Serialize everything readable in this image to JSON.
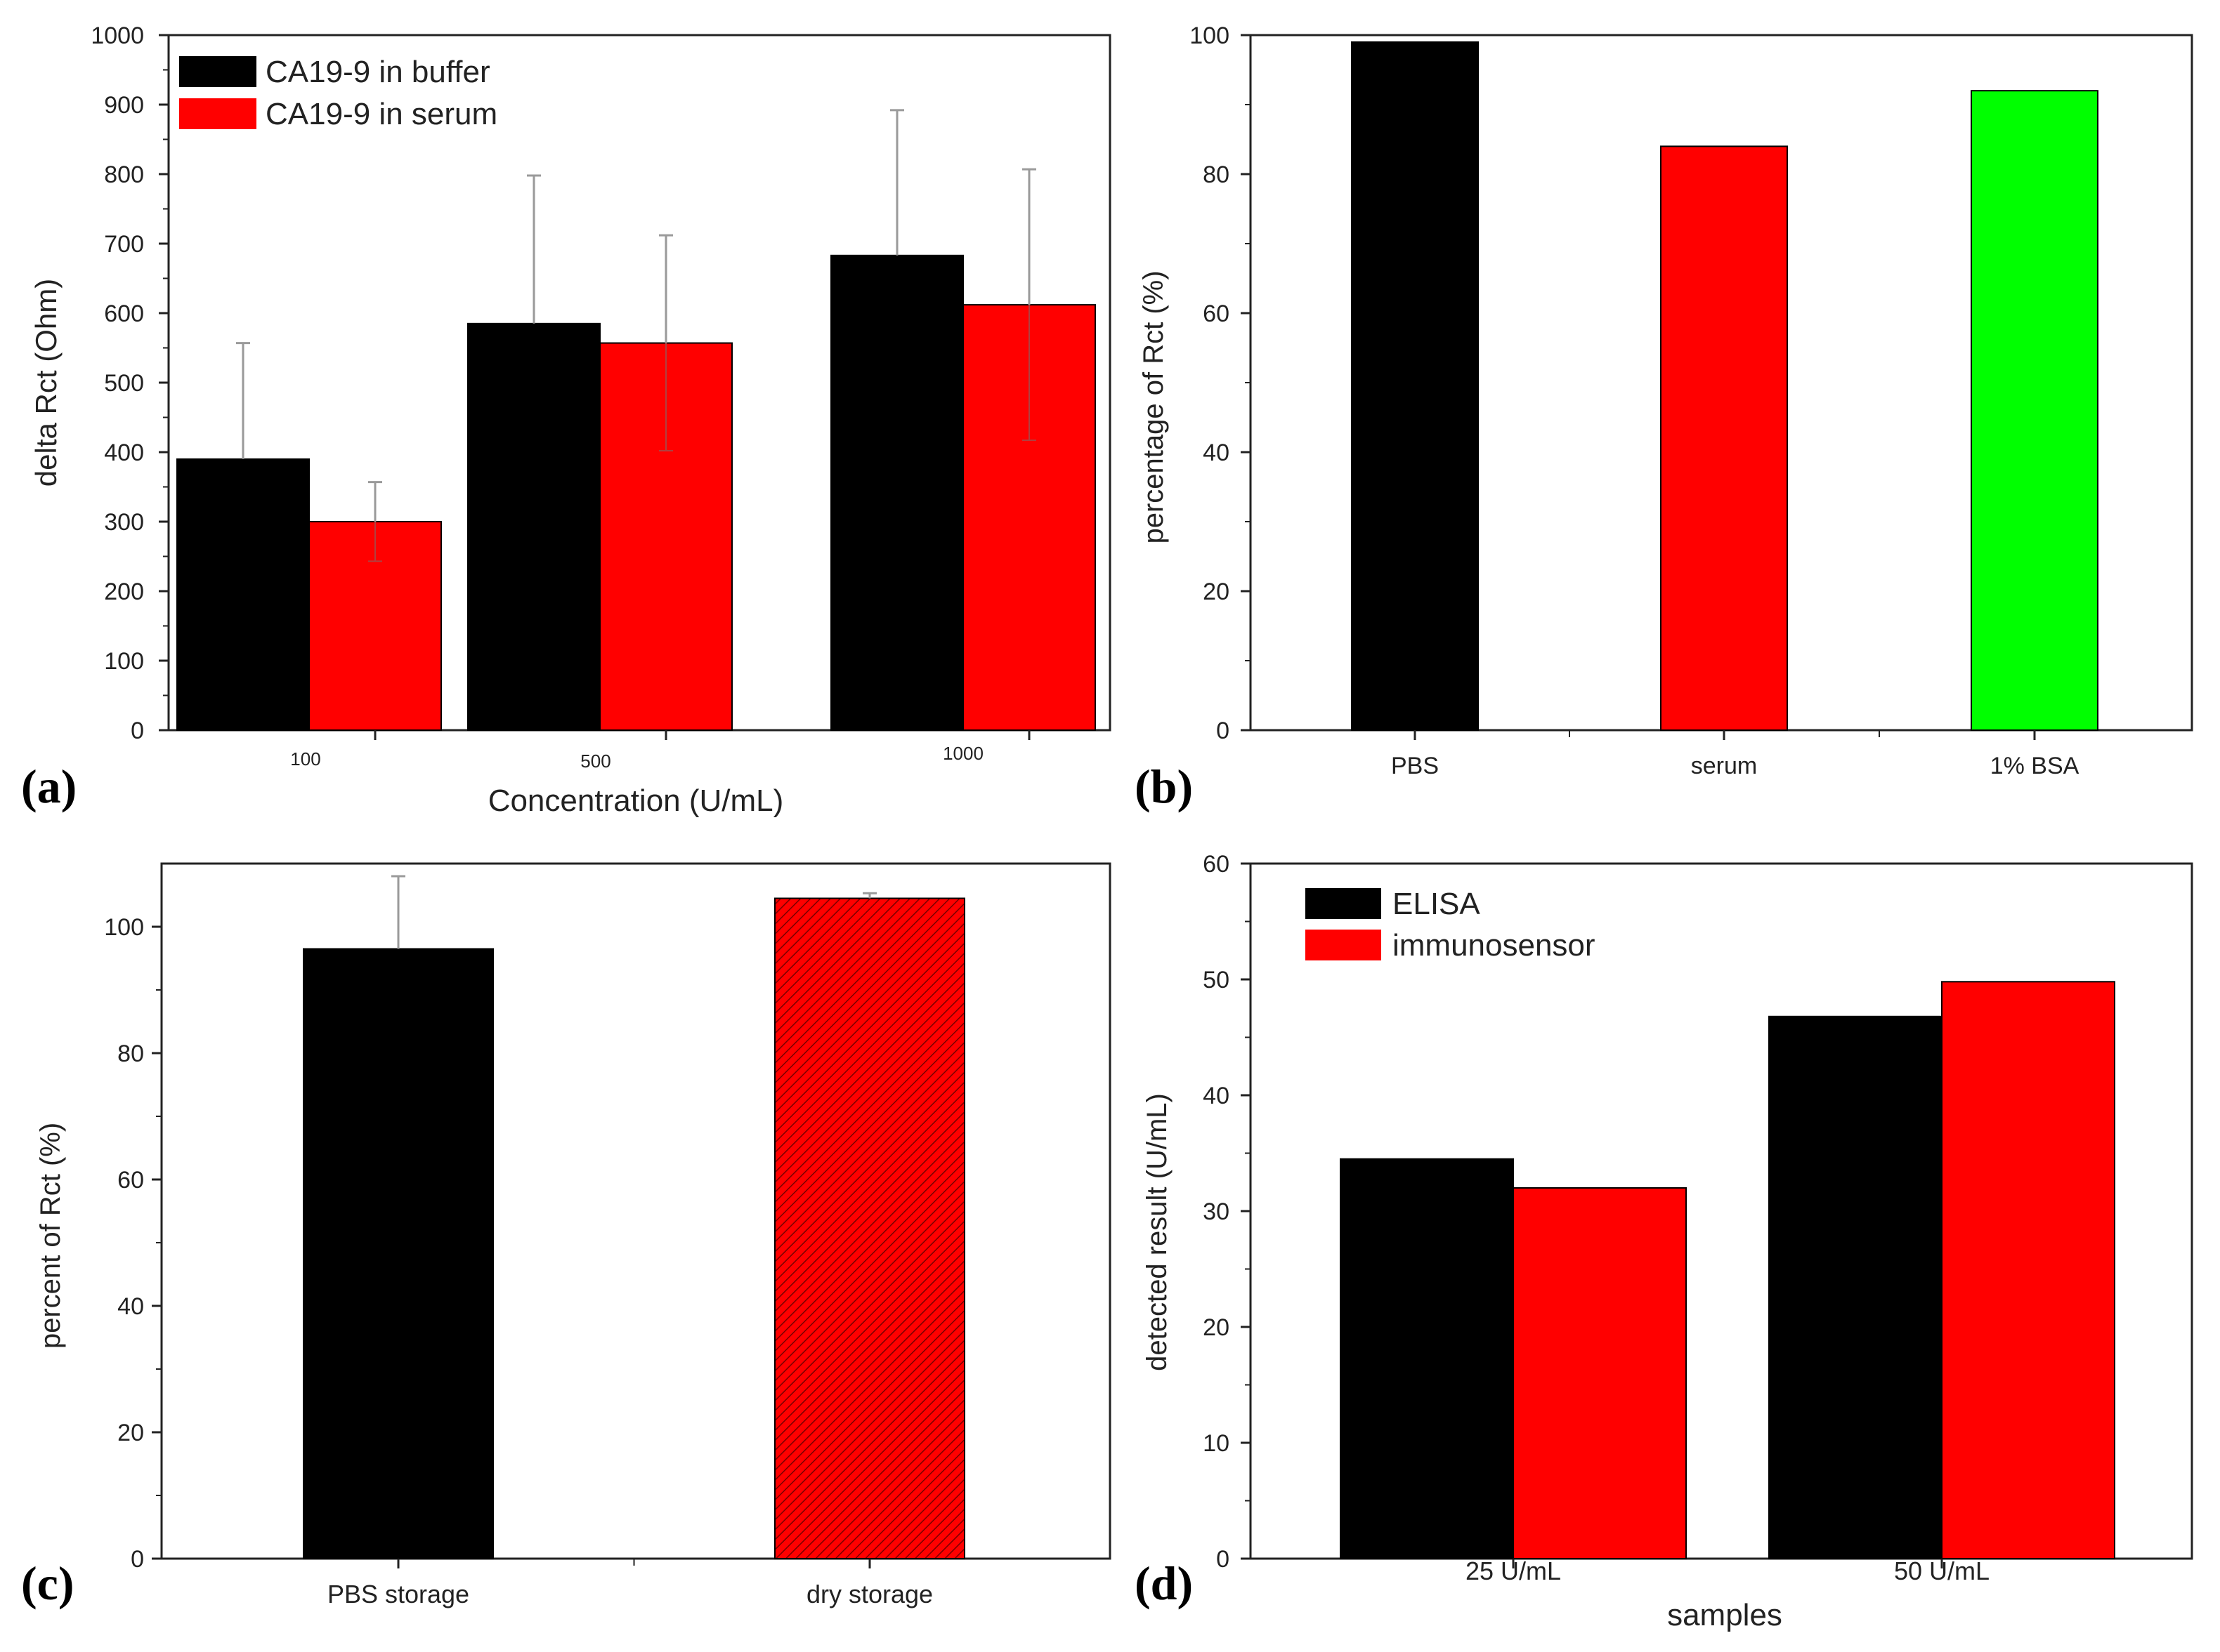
{
  "colors": {
    "black": "#000000",
    "red": "#ff0000",
    "green": "#00ff00",
    "errorbar": "#9a9a9a",
    "axis": "#222222"
  },
  "chart_data": [
    {
      "panel": "(a)",
      "type": "bar",
      "title": "",
      "xlabel": "Concentration (U/mL)",
      "ylabel": "delta Rct (Ohm)",
      "categories": [
        "100",
        "500",
        "1000"
      ],
      "ylim": [
        0,
        1000
      ],
      "yticks": [
        "0",
        "100",
        "200",
        "300",
        "400",
        "500",
        "600",
        "700",
        "800",
        "900",
        "1000"
      ],
      "legend_position": "top-left",
      "series": [
        {
          "name": "CA19-9 in buffer",
          "color": "#000000",
          "values": [
            390,
            585,
            683
          ],
          "errors": [
            167,
            213,
            209
          ]
        },
        {
          "name": "CA19-9 in serum",
          "color": "#ff0000",
          "values": [
            300,
            557,
            612
          ],
          "errors": [
            57,
            155,
            195
          ]
        }
      ]
    },
    {
      "panel": "(b)",
      "type": "bar",
      "title": "",
      "xlabel": "",
      "ylabel": "percentage of Rct (%)",
      "categories": [
        "PBS",
        "serum",
        "1% BSA"
      ],
      "ylim": [
        0,
        100
      ],
      "yticks": [
        "0",
        "20",
        "40",
        "60",
        "80",
        "100"
      ],
      "series": [
        {
          "name": "",
          "values": [
            99,
            84,
            92
          ],
          "colors": [
            "#000000",
            "#ff0000",
            "#00ff00"
          ]
        }
      ]
    },
    {
      "panel": "(c)",
      "type": "bar",
      "title": "",
      "xlabel": "",
      "ylabel": "percent of Rct (%)",
      "categories": [
        "PBS storage",
        "dry storage"
      ],
      "ylim": [
        0,
        110
      ],
      "yticks": [
        "0",
        "20",
        "40",
        "60",
        "80",
        "100"
      ],
      "series": [
        {
          "name": "",
          "values": [
            96.5,
            104.5
          ],
          "errors": [
            11.5,
            0.8
          ],
          "colors": [
            "#000000",
            "#ff0000"
          ],
          "hatched": [
            false,
            true
          ]
        }
      ]
    },
    {
      "panel": "(d)",
      "type": "bar",
      "title": "",
      "xlabel": "samples",
      "ylabel": "detected result (U/mL)",
      "categories": [
        "25 U/mL",
        "50 U/mL"
      ],
      "ylim": [
        0,
        60
      ],
      "yticks": [
        "0",
        "10",
        "20",
        "30",
        "40",
        "50",
        "60"
      ],
      "legend_position": "top-left",
      "series": [
        {
          "name": "ELISA",
          "color": "#000000",
          "values": [
            34.5,
            46.8
          ]
        },
        {
          "name": "immunosensor",
          "color": "#ff0000",
          "values": [
            32,
            49.8
          ]
        }
      ]
    }
  ]
}
